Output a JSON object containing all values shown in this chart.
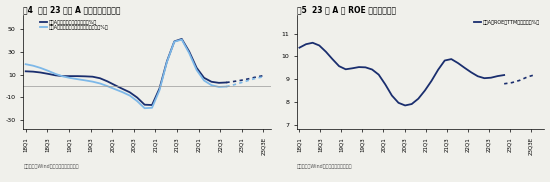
{
  "fig4_title": "图4  预计 23 年全 A 盈利增速逐级向上",
  "fig5_title": "图5  23 年 A 股 ROE 有望持续改善",
  "source_text": "资料来源：Wind，海通证券研究所测算",
  "fig4_xticks": [
    "18Q1",
    "18Q3",
    "19Q1",
    "19Q3",
    "20Q1",
    "20Q3",
    "21Q1",
    "21Q3",
    "22Q1",
    "22Q3",
    "23Q1",
    "23Q3E"
  ],
  "fig5_xticks": [
    "18Q1",
    "18Q3",
    "19Q1",
    "19Q3",
    "20Q1",
    "20Q3",
    "21Q1",
    "21Q3",
    "22Q1",
    "22Q3",
    "23Q1",
    "23Q3E"
  ],
  "fig4_yticks": [
    -30,
    -10,
    10,
    30,
    50
  ],
  "fig5_yticks": [
    7,
    8,
    9,
    10,
    11
  ],
  "fig4_ylim": [
    -38,
    62
  ],
  "fig5_ylim": [
    6.8,
    11.8
  ],
  "fig4_legend1": "全部A股归母净利润累计同比（%）",
  "fig4_legend2": "全部A股剔除金融归母净利润累计同比（%）",
  "fig5_legend": "全年A股ROE（TTM，整体法，%）",
  "color_dark_blue": "#1a2e6e",
  "color_light_blue": "#7db8e8",
  "fig4_line1_y": [
    13,
    13,
    12,
    11,
    9,
    8,
    9,
    9,
    8,
    9,
    8,
    4,
    1,
    -3,
    -5,
    -7,
    -18,
    -28,
    -10,
    28,
    48,
    50,
    32,
    10,
    5,
    3,
    2,
    3,
    4,
    5,
    6,
    8,
    10
  ],
  "fig4_line2_y": [
    20,
    18,
    16,
    14,
    10,
    8,
    7,
    6,
    5,
    4,
    3,
    0,
    -3,
    -5,
    -8,
    -10,
    -22,
    -30,
    -12,
    28,
    48,
    50,
    30,
    8,
    3,
    0,
    -2,
    -1,
    1,
    3,
    5,
    7,
    9
  ],
  "fig4_solid_n": 28,
  "fig4_n": 33,
  "fig5_line_y": [
    10.3,
    10.6,
    10.65,
    10.55,
    10.2,
    9.9,
    9.5,
    9.35,
    9.5,
    9.55,
    9.55,
    9.45,
    9.3,
    8.8,
    8.2,
    7.9,
    7.8,
    7.85,
    8.1,
    8.5,
    8.9,
    9.4,
    10.0,
    9.95,
    9.7,
    9.5,
    9.3,
    9.1,
    9.0,
    9.05,
    9.15,
    9.2,
    9.2,
    9.1,
    8.9,
    8.8
  ],
  "fig5_solid_n": 32,
  "fig5_n": 36,
  "fig5_dotted_y": [
    8.8,
    8.85,
    8.95,
    9.1,
    9.2
  ],
  "background_color": "#f0f0eb"
}
